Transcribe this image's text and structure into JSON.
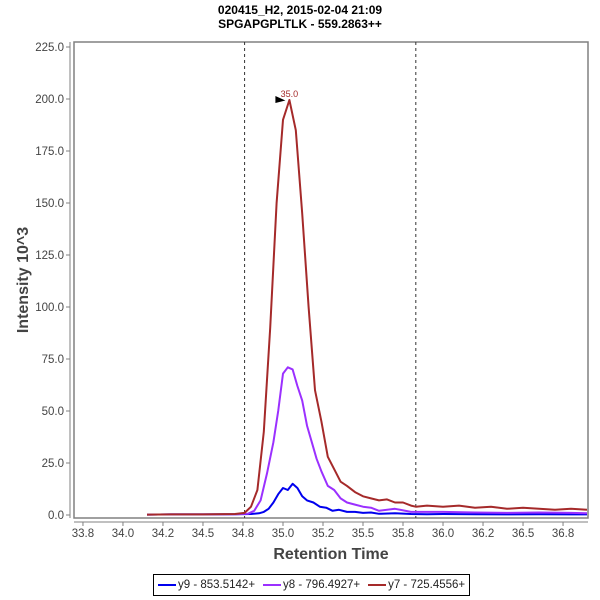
{
  "chart_data": {
    "type": "line",
    "title": "020415_H2, 2015-02-04 21:09",
    "subtitle": "SPGAPGPLTLK - 559.2863++",
    "xlabel": "Retention Time",
    "ylabel": "Intensity 10^3",
    "xlim": [
      33.694,
      36.906
    ],
    "ylim": [
      0,
      225
    ],
    "x_ticks": [
      33.75,
      34.0,
      34.25,
      34.5,
      34.75,
      35.0,
      35.25,
      35.5,
      35.75,
      36.0,
      36.25,
      36.5,
      36.75
    ],
    "x_tick_labels": [
      "33.8",
      "34.0",
      "34.2",
      "34.5",
      "34.8",
      "35.0",
      "35.2",
      "35.5",
      "35.8",
      "36.0",
      "36.2",
      "36.5",
      "36.8"
    ],
    "y_ticks": [
      0,
      25,
      50,
      75,
      100,
      125,
      150,
      175,
      200,
      225
    ],
    "y_tick_labels": [
      "0.0",
      "25.0",
      "50.0",
      "75.0",
      "100.0",
      "125.0",
      "150.0",
      "175.0",
      "200.0",
      "225.0"
    ],
    "grid": false,
    "legend_position": "bottom",
    "vertical_markers": [
      34.76,
      35.83
    ],
    "peak_annotation": {
      "x": 35.04,
      "y": 199.5,
      "label": "35.0",
      "color": "#a52a2a"
    },
    "series": [
      {
        "name": "y9 - 853.5142+",
        "color": "#0000ee",
        "x": [
          34.15,
          34.3,
          34.5,
          34.7,
          34.8,
          34.85,
          34.88,
          34.91,
          34.94,
          34.97,
          35.0,
          35.03,
          35.06,
          35.09,
          35.12,
          35.15,
          35.19,
          35.23,
          35.27,
          35.31,
          35.35,
          35.4,
          35.45,
          35.5,
          35.55,
          35.6,
          35.7,
          35.8,
          35.9,
          36.0,
          36.2,
          36.4,
          36.6,
          36.8,
          36.9
        ],
        "values": [
          0.2,
          0.3,
          0.3,
          0.4,
          0.5,
          0.8,
          1.5,
          3,
          6,
          10,
          13,
          12,
          15,
          13,
          9,
          7,
          6,
          4,
          3.5,
          2,
          2.5,
          1.5,
          1.5,
          1,
          1.2,
          0.6,
          0.8,
          0.5,
          0.4,
          0.5,
          0.4,
          0.3,
          0.4,
          0.3,
          0.3
        ]
      },
      {
        "name": "y8 - 796.4927+",
        "color": "#9b30ff",
        "x": [
          34.15,
          34.3,
          34.5,
          34.7,
          34.78,
          34.82,
          34.86,
          34.9,
          34.94,
          34.97,
          35.0,
          35.03,
          35.06,
          35.09,
          35.12,
          35.15,
          35.18,
          35.21,
          35.24,
          35.28,
          35.32,
          35.36,
          35.4,
          35.45,
          35.5,
          35.55,
          35.6,
          35.7,
          35.8,
          35.9,
          36.0,
          36.2,
          36.4,
          36.6,
          36.8,
          36.9
        ],
        "values": [
          0.2,
          0.3,
          0.3,
          0.4,
          0.6,
          2,
          7,
          20,
          35,
          50,
          68,
          71,
          70,
          62,
          55,
          43,
          35,
          27,
          21,
          14,
          12,
          8,
          6,
          5,
          4,
          3.5,
          2,
          3,
          1.5,
          1.5,
          1.5,
          1.2,
          1.0,
          1.2,
          1.0,
          0.8
        ]
      },
      {
        "name": "y7 - 725.4556+",
        "color": "#a52a2a",
        "x": [
          34.15,
          34.3,
          34.5,
          34.7,
          34.76,
          34.8,
          34.84,
          34.88,
          34.92,
          34.96,
          35.0,
          35.04,
          35.08,
          35.12,
          35.16,
          35.2,
          35.24,
          35.28,
          35.32,
          35.36,
          35.4,
          35.45,
          35.5,
          35.55,
          35.6,
          35.65,
          35.7,
          35.75,
          35.8,
          35.83,
          35.9,
          36.0,
          36.1,
          36.2,
          36.3,
          36.4,
          36.5,
          36.6,
          36.7,
          36.8,
          36.9
        ],
        "values": [
          0.2,
          0.3,
          0.3,
          0.5,
          1,
          4,
          12,
          40,
          90,
          150,
          190,
          199.5,
          185,
          145,
          100,
          60,
          45,
          28,
          22,
          16,
          14,
          11,
          9,
          8,
          7,
          7.5,
          6,
          6,
          4.5,
          4,
          4.5,
          4,
          4.5,
          3.5,
          4,
          3,
          3.5,
          3,
          2.5,
          3,
          2.5
        ]
      }
    ]
  }
}
